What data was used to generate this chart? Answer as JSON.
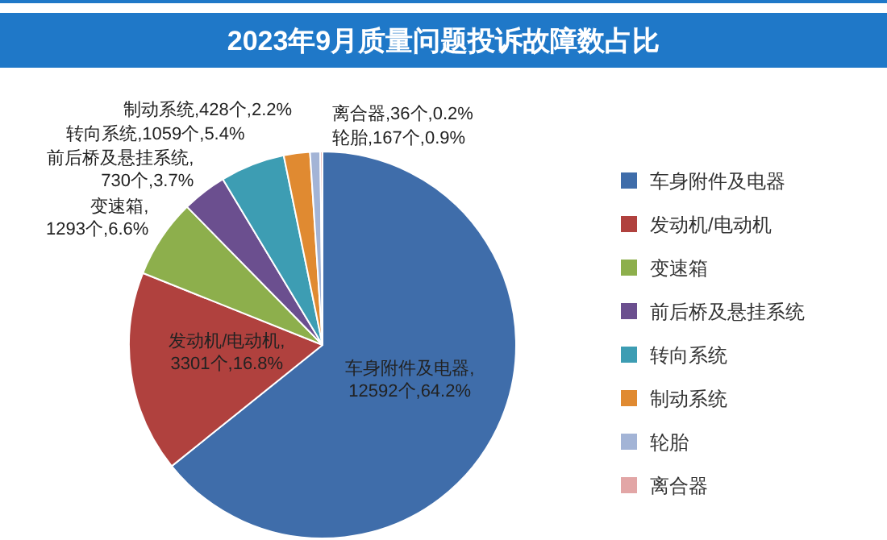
{
  "chart_data": {
    "type": "pie",
    "title": "2023年9月质量问题投诉故障数占比",
    "categories": [
      "车身附件及电器",
      "发动机/电动机",
      "变速箱",
      "前后桥及悬挂系统",
      "转向系统",
      "制动系统",
      "轮胎",
      "离合器"
    ],
    "values": [
      12592,
      3301,
      1293,
      730,
      1059,
      428,
      167,
      36
    ],
    "colors": [
      "#3f6daa",
      "#b0413e",
      "#8daf4c",
      "#6b4f8f",
      "#3d9db3",
      "#e08a31",
      "#a3b4d6",
      "#e2a6a6"
    ],
    "value_labels": [
      "车身附件及电器,\n12592个,64.2%",
      "发动机/电动机,\n3301个,16.8%",
      "变速箱,\n1293个,6.6%",
      "前后桥及悬挂系统,\n730个,3.7%",
      "转向系统,1059个,5.4%",
      "制动系统,428个,2.2%",
      "轮胎,167个,0.9%",
      "离合器,36个,0.2%"
    ],
    "legend": "right"
  }
}
